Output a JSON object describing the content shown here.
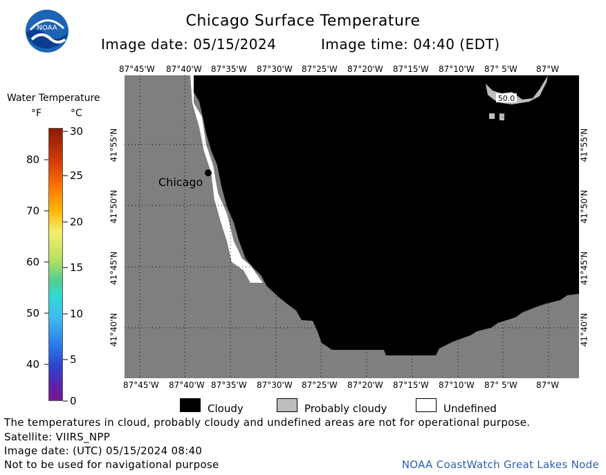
{
  "header": {
    "title": "Chicago Surface Temperature",
    "image_date_label": "Image date: 05/15/2024",
    "image_time_label": "Image time: 04:40 (EDT)",
    "logo_text": "NOAA"
  },
  "colorbar": {
    "title": "Water Temperature",
    "unit_f": "°F",
    "unit_c": "°C",
    "f_labels": [
      "80",
      "70",
      "60",
      "50",
      "40"
    ],
    "c_labels": [
      "30",
      "25",
      "20",
      "15",
      "10",
      "5",
      "0"
    ]
  },
  "map": {
    "top_lon_labels": [
      "87°45'W",
      "87°40'W",
      "87°35'W",
      "87°30'W",
      "87°25'W",
      "87°20'W",
      "87°15'W",
      "87°10'W",
      "87° 5'W",
      "87°W"
    ],
    "bottom_lon_labels": [
      "87°45'W",
      "87°40'W",
      "87°35'W",
      "87°30'W",
      "87°25'W",
      "87°20'W",
      "87°15'W",
      "87°10'W",
      "87° 5'W",
      "87°W"
    ],
    "left_lat_labels": [
      "41°55'N",
      "41°50'N",
      "41°45'N",
      "41°40'N"
    ],
    "right_lat_labels": [
      "41°55'N",
      "41°50'N",
      "41°45'N",
      "41°40'N"
    ],
    "city_label": "Chicago",
    "buoy_label": "50.0",
    "colors": {
      "land": "#7f7f7f",
      "cloud": "#000000",
      "probably_cloudy": "#bdbdbd",
      "undefined": "#ffffff"
    }
  },
  "legend": {
    "cloudy": "Cloudy",
    "probably_cloudy": "Probably cloudy",
    "undefined": "Undefined"
  },
  "footer": {
    "note": "The temperatures in cloud, probably cloudy and undefined areas are not for operational purpose.",
    "satellite": "Satellite: VIIRS_NPP",
    "utc_date": "Image date: (UTC) 05/15/2024  08:40",
    "nav_warning": "Not to be used for navigational purpose",
    "credit": "NOAA CoastWatch Great Lakes Node"
  }
}
